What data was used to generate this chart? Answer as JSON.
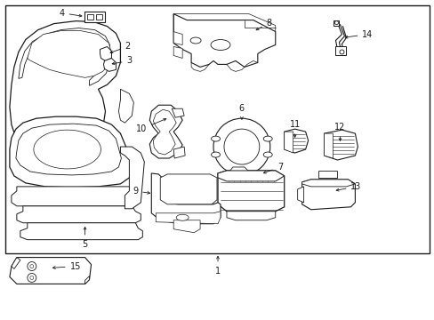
{
  "bg_color": "#ffffff",
  "line_color": "#1a1a1a",
  "border_color": "#1a1a1a",
  "fig_width": 4.89,
  "fig_height": 3.6,
  "dpi": 100,
  "lw": 0.75,
  "fs": 7.0
}
